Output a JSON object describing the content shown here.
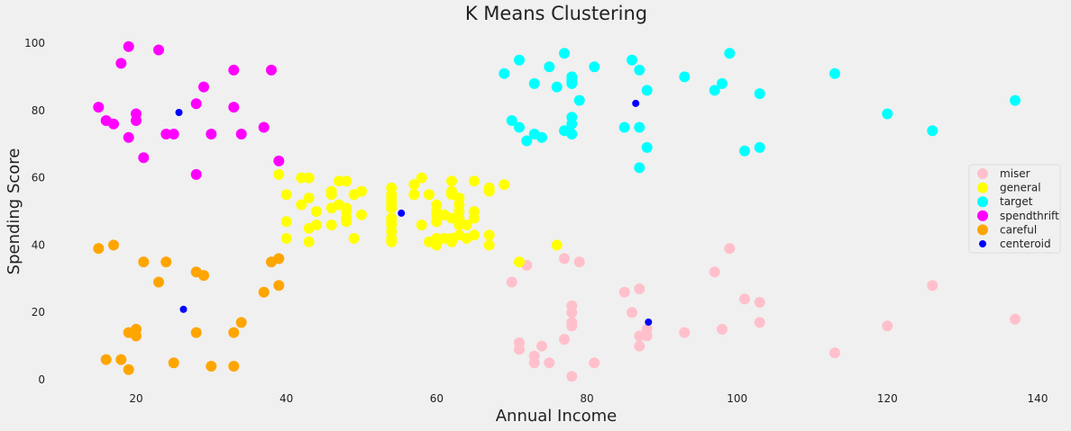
{
  "chart_data": {
    "type": "scatter",
    "title": "K Means Clustering",
    "xlabel": "Annual Income",
    "ylabel": "Spending Score",
    "xlim": [
      8,
      142
    ],
    "ylim": [
      -4,
      103
    ],
    "xticks": [
      20,
      40,
      60,
      80,
      100,
      120,
      140
    ],
    "yticks": [
      0,
      20,
      40,
      60,
      80,
      100
    ],
    "grid": false,
    "legend": "center-right",
    "series": [
      {
        "name": "miser",
        "color": "#ffc0cb",
        "points": [
          [
            70,
            29
          ],
          [
            71,
            11
          ],
          [
            71,
            9
          ],
          [
            72,
            34
          ],
          [
            73,
            5
          ],
          [
            73,
            7
          ],
          [
            74,
            10
          ],
          [
            75,
            5
          ],
          [
            77,
            12
          ],
          [
            77,
            36
          ],
          [
            78,
            22
          ],
          [
            78,
            17
          ],
          [
            78,
            20
          ],
          [
            78,
            16
          ],
          [
            78,
            1
          ],
          [
            79,
            35
          ],
          [
            81,
            5
          ],
          [
            85,
            26
          ],
          [
            86,
            20
          ],
          [
            87,
            27
          ],
          [
            87,
            13
          ],
          [
            87,
            10
          ],
          [
            88,
            13
          ],
          [
            88,
            15
          ],
          [
            93,
            14
          ],
          [
            97,
            32
          ],
          [
            98,
            15
          ],
          [
            99,
            39
          ],
          [
            101,
            24
          ],
          [
            103,
            17
          ],
          [
            103,
            23
          ],
          [
            113,
            8
          ],
          [
            120,
            16
          ],
          [
            126,
            28
          ],
          [
            137,
            18
          ]
        ]
      },
      {
        "name": "general",
        "color": "#ffff00",
        "points": [
          [
            39,
            61
          ],
          [
            40,
            55
          ],
          [
            40,
            47
          ],
          [
            40,
            42
          ],
          [
            42,
            52
          ],
          [
            42,
            60
          ],
          [
            43,
            54
          ],
          [
            43,
            60
          ],
          [
            43,
            45
          ],
          [
            43,
            41
          ],
          [
            44,
            50
          ],
          [
            44,
            46
          ],
          [
            46,
            51
          ],
          [
            46,
            46
          ],
          [
            46,
            56
          ],
          [
            46,
            55
          ],
          [
            47,
            52
          ],
          [
            47,
            59
          ],
          [
            48,
            51
          ],
          [
            48,
            59
          ],
          [
            48,
            50
          ],
          [
            48,
            48
          ],
          [
            48,
            47
          ],
          [
            49,
            55
          ],
          [
            49,
            42
          ],
          [
            50,
            49
          ],
          [
            50,
            56
          ],
          [
            54,
            47
          ],
          [
            54,
            54
          ],
          [
            54,
            53
          ],
          [
            54,
            48
          ],
          [
            54,
            52
          ],
          [
            54,
            42
          ],
          [
            54,
            51
          ],
          [
            54,
            55
          ],
          [
            54,
            41
          ],
          [
            54,
            44
          ],
          [
            54,
            57
          ],
          [
            54,
            46
          ],
          [
            57,
            58
          ],
          [
            57,
            55
          ],
          [
            58,
            60
          ],
          [
            58,
            46
          ],
          [
            59,
            55
          ],
          [
            59,
            41
          ],
          [
            60,
            49
          ],
          [
            60,
            40
          ],
          [
            60,
            42
          ],
          [
            60,
            52
          ],
          [
            60,
            47
          ],
          [
            60,
            50
          ],
          [
            61,
            42
          ],
          [
            61,
            49
          ],
          [
            62,
            41
          ],
          [
            62,
            48
          ],
          [
            62,
            59
          ],
          [
            62,
            55
          ],
          [
            62,
            56
          ],
          [
            62,
            42
          ],
          [
            63,
            50
          ],
          [
            63,
            46
          ],
          [
            63,
            43
          ],
          [
            63,
            48
          ],
          [
            63,
            52
          ],
          [
            63,
            54
          ],
          [
            64,
            42
          ],
          [
            64,
            46
          ],
          [
            65,
            48
          ],
          [
            65,
            50
          ],
          [
            65,
            43
          ],
          [
            65,
            59
          ],
          [
            67,
            43
          ],
          [
            67,
            57
          ],
          [
            67,
            56
          ],
          [
            67,
            40
          ],
          [
            69,
            58
          ],
          [
            71,
            35
          ],
          [
            76,
            40
          ]
        ]
      },
      {
        "name": "target",
        "color": "#00ffff",
        "points": [
          [
            69,
            91
          ],
          [
            70,
            77
          ],
          [
            71,
            95
          ],
          [
            71,
            75
          ],
          [
            72,
            71
          ],
          [
            73,
            88
          ],
          [
            73,
            73
          ],
          [
            74,
            72
          ],
          [
            75,
            93
          ],
          [
            76,
            87
          ],
          [
            77,
            97
          ],
          [
            77,
            74
          ],
          [
            78,
            90
          ],
          [
            78,
            88
          ],
          [
            78,
            76
          ],
          [
            78,
            89
          ],
          [
            78,
            78
          ],
          [
            78,
            73
          ],
          [
            79,
            83
          ],
          [
            81,
            93
          ],
          [
            85,
            75
          ],
          [
            86,
            95
          ],
          [
            87,
            63
          ],
          [
            87,
            75
          ],
          [
            87,
            92
          ],
          [
            88,
            86
          ],
          [
            88,
            69
          ],
          [
            93,
            90
          ],
          [
            97,
            86
          ],
          [
            98,
            88
          ],
          [
            99,
            97
          ],
          [
            101,
            68
          ],
          [
            103,
            85
          ],
          [
            103,
            69
          ],
          [
            113,
            91
          ],
          [
            120,
            79
          ],
          [
            126,
            74
          ],
          [
            137,
            83
          ]
        ]
      },
      {
        "name": "spendthrift",
        "color": "#ff00ff",
        "points": [
          [
            15,
            81
          ],
          [
            16,
            77
          ],
          [
            17,
            76
          ],
          [
            18,
            94
          ],
          [
            19,
            72
          ],
          [
            19,
            99
          ],
          [
            20,
            77
          ],
          [
            20,
            79
          ],
          [
            21,
            66
          ],
          [
            23,
            98
          ],
          [
            24,
            73
          ],
          [
            25,
            73
          ],
          [
            28,
            82
          ],
          [
            28,
            61
          ],
          [
            29,
            87
          ],
          [
            30,
            73
          ],
          [
            33,
            92
          ],
          [
            33,
            81
          ],
          [
            34,
            73
          ],
          [
            37,
            75
          ],
          [
            38,
            92
          ],
          [
            39,
            65
          ]
        ]
      },
      {
        "name": "careful",
        "color": "#ffa500",
        "points": [
          [
            15,
            39
          ],
          [
            16,
            6
          ],
          [
            17,
            40
          ],
          [
            18,
            6
          ],
          [
            19,
            3
          ],
          [
            19,
            14
          ],
          [
            20,
            15
          ],
          [
            20,
            13
          ],
          [
            21,
            35
          ],
          [
            23,
            29
          ],
          [
            24,
            35
          ],
          [
            25,
            5
          ],
          [
            28,
            14
          ],
          [
            28,
            32
          ],
          [
            29,
            31
          ],
          [
            30,
            4
          ],
          [
            33,
            4
          ],
          [
            33,
            14
          ],
          [
            34,
            17
          ],
          [
            37,
            26
          ],
          [
            38,
            35
          ],
          [
            39,
            36
          ],
          [
            39,
            28
          ]
        ]
      },
      {
        "name": "centeroid",
        "color": "#0000ff",
        "marker": "small",
        "points": [
          [
            25.7,
            79.4
          ],
          [
            55.3,
            49.5
          ],
          [
            86.5,
            82.1
          ],
          [
            26.3,
            20.9
          ],
          [
            88.2,
            17.1
          ]
        ]
      }
    ]
  }
}
